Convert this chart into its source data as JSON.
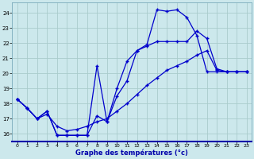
{
  "xlabel": "Graphe des températures (°c)",
  "bg_color": "#cce8ec",
  "grid_color": "#aacccc",
  "line_color": "#0000cc",
  "xlim": [
    -0.5,
    23.5
  ],
  "ylim": [
    15.5,
    24.7
  ],
  "xticks": [
    0,
    1,
    2,
    3,
    4,
    5,
    6,
    7,
    8,
    9,
    10,
    11,
    12,
    13,
    14,
    15,
    16,
    17,
    18,
    19,
    20,
    21,
    22,
    23
  ],
  "yticks": [
    16,
    17,
    18,
    19,
    20,
    21,
    22,
    23,
    24
  ],
  "line1_x": [
    0,
    1,
    2,
    3,
    4,
    5,
    6,
    7,
    8,
    9,
    10,
    11,
    12,
    13,
    14,
    15,
    16,
    17,
    18,
    19,
    20,
    21,
    22,
    23
  ],
  "line1_y": [
    18.3,
    17.7,
    17.0,
    17.5,
    15.9,
    15.9,
    15.9,
    15.9,
    20.5,
    16.8,
    19.0,
    20.8,
    21.5,
    21.9,
    24.2,
    24.1,
    24.2,
    23.7,
    22.5,
    20.1,
    20.1,
    20.1,
    20.1,
    20.1
  ],
  "line2_x": [
    0,
    1,
    2,
    3,
    4,
    5,
    6,
    7,
    8,
    9,
    10,
    11,
    12,
    13,
    14,
    15,
    16,
    17,
    18,
    19,
    20,
    21,
    22,
    23
  ],
  "line2_y": [
    18.3,
    17.7,
    17.0,
    17.5,
    15.9,
    15.9,
    15.9,
    15.9,
    17.2,
    16.8,
    18.5,
    19.5,
    21.5,
    21.8,
    22.1,
    22.1,
    22.1,
    22.1,
    22.8,
    22.3,
    20.3,
    20.1,
    20.1,
    20.1
  ],
  "line3_x": [
    0,
    1,
    2,
    3,
    4,
    5,
    6,
    7,
    8,
    9,
    10,
    11,
    12,
    13,
    14,
    15,
    16,
    17,
    18,
    19,
    20,
    21,
    22,
    23
  ],
  "line3_y": [
    18.3,
    17.7,
    17.0,
    17.3,
    16.5,
    16.2,
    16.3,
    16.5,
    16.8,
    17.0,
    17.5,
    18.0,
    18.6,
    19.2,
    19.7,
    20.2,
    20.5,
    20.8,
    21.2,
    21.5,
    20.2,
    20.1,
    20.1,
    20.1
  ]
}
